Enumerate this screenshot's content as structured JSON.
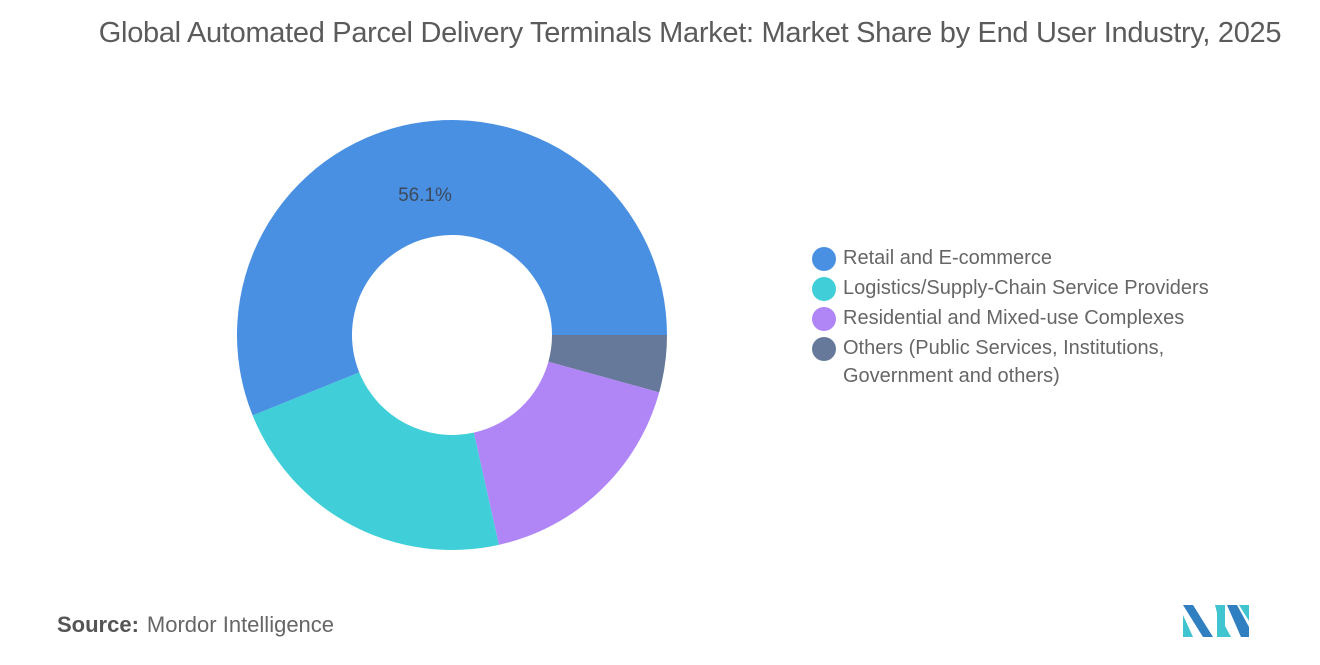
{
  "title": "Global Automated Parcel Delivery Terminals Market: Market Share by End User Industry, 2025",
  "source_label": "Source:",
  "source_value": "Mordor Intelligence",
  "chart_data": {
    "type": "pie",
    "subtype": "donut",
    "title": "Global Automated Parcel Delivery Terminals Market: Market Share by End User Industry, 2025",
    "categories": [
      "Retail and E-commerce",
      "Logistics/Supply-Chain Service Providers",
      "Residential and Mixed-use Complexes",
      "Others (Public Services, Institutions, Government and others)"
    ],
    "values": [
      56.1,
      22.4,
      17.2,
      4.3
    ],
    "colors": [
      "#4a90e2",
      "#40cfd9",
      "#b086f7",
      "#66799b"
    ],
    "data_labels": [
      "56.1%",
      "",
      "",
      ""
    ],
    "legend_position": "right"
  },
  "legend": [
    {
      "label": "Retail and E-commerce",
      "color": "#4a90e2"
    },
    {
      "label": "Logistics/Supply-Chain Service Providers",
      "color": "#40cfd9"
    },
    {
      "label": "Residential and Mixed-use Complexes",
      "color": "#b086f7"
    },
    {
      "label": "Others (Public Services, Institutions,\nGovernment and others)",
      "color": "#66799b"
    }
  ],
  "data_label_main": "56.1%"
}
